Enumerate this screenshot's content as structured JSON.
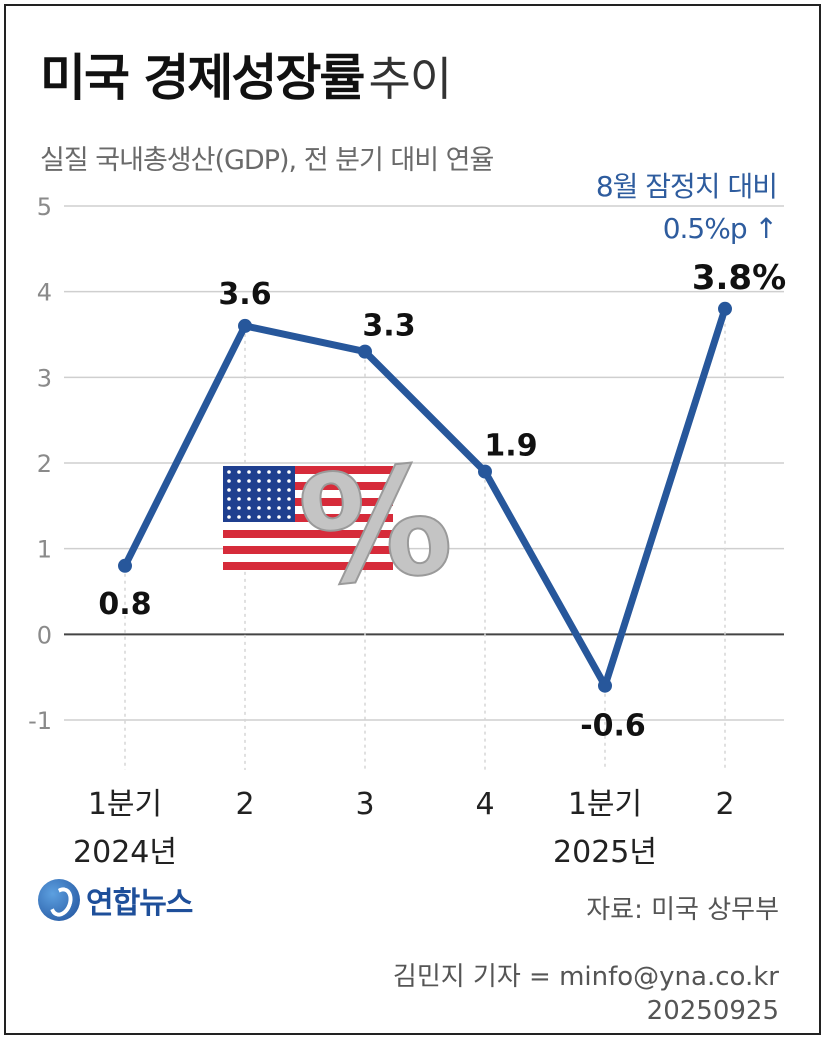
{
  "title": "미국 경제성장률",
  "title_suffix": "추이",
  "subtitle": "실질 국내총생산(GDP), 전 분기 대비 연율",
  "annotation": {
    "line1": "8월 잠정치 대비",
    "line2": "0.5%p ↑"
  },
  "source": "자료: 미국 상무부",
  "logo_text": "연합뉴스",
  "credit": "김민지 기자 = minfo@yna.co.kr",
  "date": "20250925",
  "colors": {
    "line": "#27579b",
    "grid": "#cfcfcf",
    "zero_line": "#444444",
    "annotation": "#2e5c9e"
  },
  "chart_data": {
    "type": "line",
    "x": [
      "1분기",
      "2",
      "3",
      "4",
      "1분기",
      "2"
    ],
    "x_year_labels": [
      "2024년",
      "",
      "",
      "",
      "2025년",
      ""
    ],
    "series": [
      {
        "values": [
          0.8,
          3.6,
          3.3,
          1.9,
          -0.6,
          3.8
        ]
      }
    ],
    "data_labels": [
      "0.8",
      "3.6",
      "3.3",
      "1.9",
      "-0.6",
      "3.8%"
    ],
    "y_ticks": [
      "5",
      "4",
      "3",
      "2",
      "1",
      "0",
      "-1"
    ],
    "ylim": [
      -1,
      5
    ],
    "grid": true
  }
}
